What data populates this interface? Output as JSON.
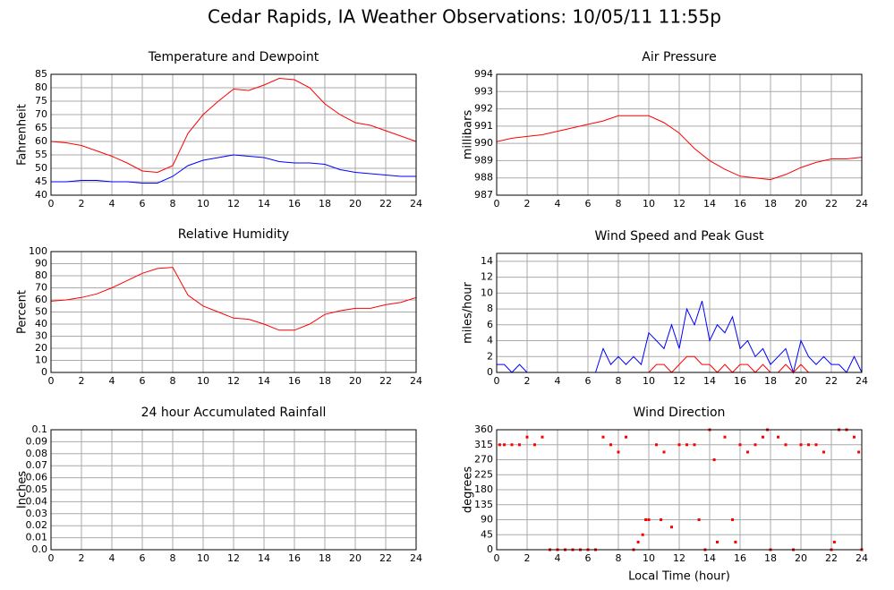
{
  "title": "Cedar Rapids, IA Weather Observations: 10/05/11 11:55p",
  "chart_data": [
    {
      "type": "line",
      "title": "Temperature and Dewpoint",
      "ylabel": "Fahrenheit",
      "x": [
        0,
        1,
        2,
        3,
        4,
        5,
        6,
        7,
        8,
        9,
        10,
        11,
        12,
        13,
        14,
        15,
        16,
        17,
        18,
        19,
        20,
        21,
        22,
        23,
        24
      ],
      "series": [
        {
          "color": "#ff0000",
          "values": [
            60,
            59.5,
            58.5,
            56.5,
            54.5,
            52,
            49,
            48.5,
            51,
            63,
            70,
            75,
            79.5,
            79,
            81,
            83.5,
            83,
            80,
            74,
            70,
            67,
            66,
            64,
            62,
            60
          ]
        },
        {
          "color": "#0000ff",
          "values": [
            45,
            45,
            45.5,
            45.5,
            45,
            45,
            44.5,
            44.5,
            47,
            51,
            53,
            54,
            55,
            54.5,
            54,
            52.5,
            52,
            52,
            51.5,
            49.5,
            48.5,
            48,
            47.5,
            47,
            47
          ]
        }
      ],
      "xlim": [
        0,
        24
      ],
      "xticks": [
        0,
        2,
        4,
        6,
        8,
        10,
        12,
        14,
        16,
        18,
        20,
        22,
        24
      ],
      "ylim": [
        40,
        85
      ],
      "yticks": [
        40,
        45,
        50,
        55,
        60,
        65,
        70,
        75,
        80,
        85
      ],
      "grid": true
    },
    {
      "type": "line",
      "title": "Air Pressure",
      "ylabel": "millibars",
      "x": [
        0,
        1,
        2,
        3,
        4,
        5,
        6,
        7,
        8,
        9,
        10,
        11,
        12,
        13,
        14,
        15,
        16,
        17,
        18,
        19,
        20,
        21,
        22,
        23,
        24
      ],
      "series": [
        {
          "color": "#ff0000",
          "values": [
            990.1,
            990.3,
            990.4,
            990.5,
            990.7,
            990.9,
            991.1,
            991.3,
            991.6,
            991.6,
            991.6,
            991.2,
            990.6,
            989.7,
            989.0,
            988.5,
            988.1,
            988.0,
            987.9,
            988.2,
            988.6,
            988.9,
            989.1,
            989.1,
            989.2
          ]
        }
      ],
      "xlim": [
        0,
        24
      ],
      "xticks": [
        0,
        2,
        4,
        6,
        8,
        10,
        12,
        14,
        16,
        18,
        20,
        22,
        24
      ],
      "ylim": [
        987,
        994
      ],
      "yticks": [
        987,
        988,
        989,
        990,
        991,
        992,
        993,
        994
      ],
      "grid": true
    },
    {
      "type": "line",
      "title": "Relative Humidity",
      "ylabel": "Percent",
      "x": [
        0,
        1,
        2,
        3,
        4,
        5,
        6,
        7,
        8,
        9,
        10,
        11,
        12,
        13,
        14,
        15,
        16,
        17,
        18,
        19,
        20,
        21,
        22,
        23,
        24
      ],
      "series": [
        {
          "color": "#ff0000",
          "values": [
            59,
            60,
            62,
            65,
            70,
            76,
            82,
            86,
            87,
            64,
            55,
            50,
            45,
            44,
            40,
            35,
            35,
            40,
            48,
            51,
            53,
            53,
            56,
            58,
            62
          ]
        }
      ],
      "xlim": [
        0,
        24
      ],
      "xticks": [
        0,
        2,
        4,
        6,
        8,
        10,
        12,
        14,
        16,
        18,
        20,
        22,
        24
      ],
      "ylim": [
        0,
        100
      ],
      "yticks": [
        0,
        10,
        20,
        30,
        40,
        50,
        60,
        70,
        80,
        90,
        100
      ],
      "grid": true
    },
    {
      "type": "line",
      "title": "Wind Speed and Peak Gust",
      "ylabel": "miles/hour",
      "x": [
        0,
        0.5,
        1,
        1.5,
        2,
        2.5,
        3,
        3.5,
        4,
        4.5,
        5,
        5.5,
        6,
        6.5,
        7,
        7.5,
        8,
        8.5,
        9,
        9.5,
        10,
        10.5,
        11,
        11.5,
        12,
        12.5,
        13,
        13.5,
        14,
        14.5,
        15,
        15.5,
        16,
        16.5,
        17,
        17.5,
        18,
        18.5,
        19,
        19.5,
        20,
        20.5,
        21,
        21.5,
        22,
        22.5,
        23,
        23.5,
        24
      ],
      "series": [
        {
          "color": "#0000ff",
          "values": [
            1,
            1,
            0,
            1,
            0,
            0,
            0,
            0,
            0,
            0,
            0,
            0,
            0,
            0,
            3,
            1,
            2,
            1,
            2,
            1,
            5,
            4,
            3,
            6,
            3,
            8,
            6,
            9,
            4,
            6,
            5,
            7,
            3,
            4,
            2,
            3,
            1,
            2,
            3,
            0,
            4,
            2,
            1,
            2,
            1,
            1,
            0,
            2,
            0
          ]
        },
        {
          "color": "#ff0000",
          "values": [
            0,
            0,
            0,
            0,
            0,
            0,
            0,
            0,
            0,
            0,
            0,
            0,
            0,
            0,
            0,
            0,
            0,
            0,
            0,
            0,
            0,
            1,
            1,
            0,
            1,
            2,
            2,
            1,
            1,
            0,
            1,
            0,
            1,
            1,
            0,
            1,
            0,
            0,
            1,
            0,
            1,
            0,
            0,
            0,
            0,
            0,
            0,
            0,
            0
          ]
        }
      ],
      "xlim": [
        0,
        24
      ],
      "xticks": [
        0,
        2,
        4,
        6,
        8,
        10,
        12,
        14,
        16,
        18,
        20,
        22,
        24
      ],
      "ylim": [
        0,
        15
      ],
      "yticks": [
        0,
        2,
        4,
        6,
        8,
        10,
        12,
        14
      ],
      "grid": true
    },
    {
      "type": "line",
      "title": "24 hour Accumulated Rainfall",
      "ylabel": "Inches",
      "x": [
        0,
        24
      ],
      "series": [
        {
          "color": "#ff0000",
          "values": [
            0,
            0
          ]
        }
      ],
      "xlim": [
        0,
        24
      ],
      "xticks": [
        0,
        2,
        4,
        6,
        8,
        10,
        12,
        14,
        16,
        18,
        20,
        22,
        24
      ],
      "ylim": [
        0,
        0.1
      ],
      "yticks": [
        {
          "value": 0,
          "label": "0.0"
        },
        0.01,
        0.02,
        0.03,
        0.04,
        0.05,
        0.06,
        0.07,
        0.08,
        0.09,
        0.1
      ],
      "grid": true
    },
    {
      "type": "scatter",
      "title": "Wind Direction",
      "ylabel": "degrees",
      "xlabel": "Local Time (hour)",
      "x": [
        0.2,
        0.5,
        1,
        1.5,
        2,
        2.5,
        3,
        3.5,
        4,
        4.5,
        5,
        5.5,
        6,
        6.5,
        7,
        7.5,
        8,
        8.5,
        9,
        9.3,
        9.6,
        9.8,
        10,
        10.5,
        10.8,
        11,
        11.5,
        12,
        12.5,
        13,
        13.3,
        13.7,
        14,
        14.3,
        14.5,
        15,
        15.5,
        15.7,
        16,
        16.5,
        17,
        17.5,
        17.8,
        18,
        18.5,
        19,
        19.5,
        20,
        20.5,
        21,
        21.5,
        22,
        22.2,
        22.5,
        23,
        23.5,
        23.8,
        24
      ],
      "series": [
        {
          "color": "#ff0000",
          "values": [
            315,
            315,
            315,
            315,
            338,
            315,
            338,
            0,
            0,
            0,
            0,
            0,
            0,
            0,
            338,
            315,
            293,
            338,
            0,
            23,
            45,
            90,
            90,
            315,
            90,
            293,
            68,
            315,
            315,
            315,
            90,
            0,
            360,
            270,
            23,
            338,
            90,
            23,
            315,
            293,
            315,
            338,
            360,
            0,
            338,
            315,
            0,
            315,
            315,
            315,
            293,
            0,
            23,
            360,
            360,
            338,
            293,
            0
          ]
        }
      ],
      "xlim": [
        0,
        24
      ],
      "xticks": [
        0,
        2,
        4,
        6,
        8,
        10,
        12,
        14,
        16,
        18,
        20,
        22,
        24
      ],
      "ylim": [
        0,
        360
      ],
      "yticks": [
        0,
        45,
        90,
        135,
        180,
        225,
        270,
        315,
        360
      ],
      "grid": true
    }
  ]
}
